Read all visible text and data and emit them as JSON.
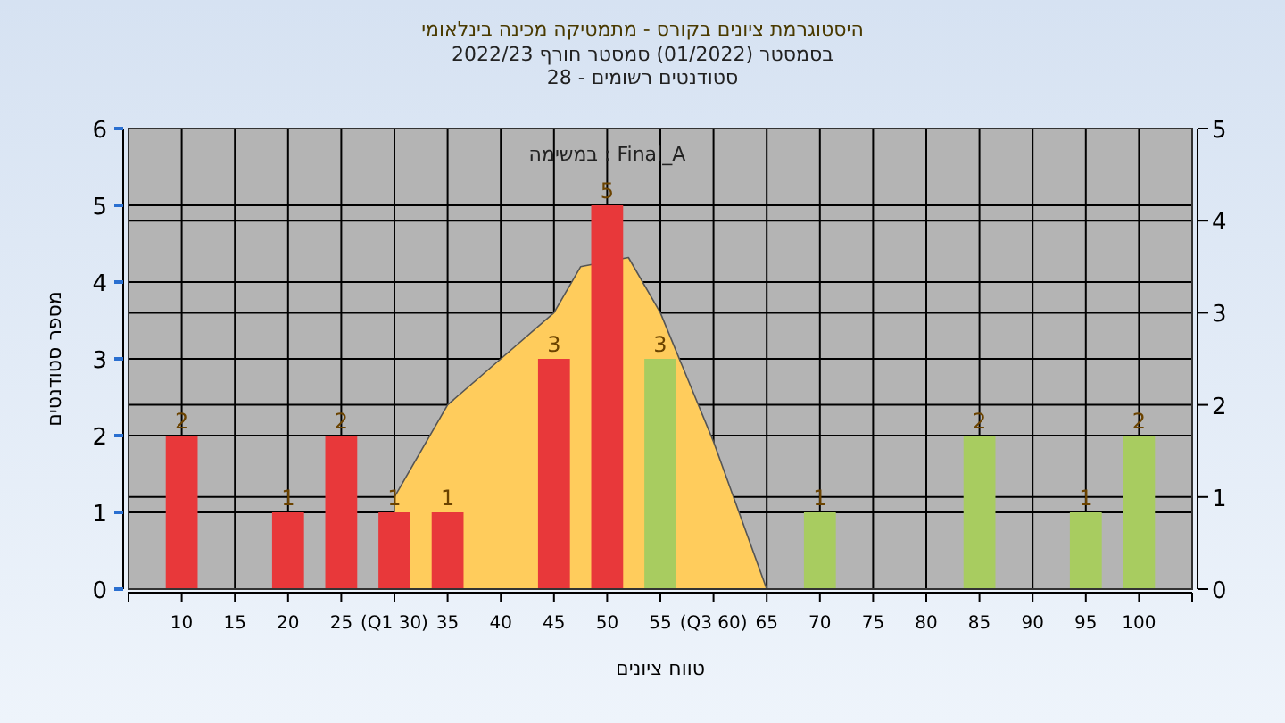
{
  "chart_data": {
    "type": "bar",
    "title": "היסטוגרמת ציונים בקורס - מתמטיקה מכינה בינלאומי",
    "subtitle": "בסמסטר  (01/2022)  סמסטר חורף 2022/23\nסטודנטים רשומים - 28",
    "xlabel": "טווח ציונים",
    "ylabel": "מספר סטודנטים",
    "annotations": [
      "במשימה : Final_A"
    ],
    "series": [
      {
        "type": "area",
        "axis": "y2",
        "color": "#ffcc5c",
        "x": [
          30,
          30,
          35,
          40,
          45,
          47.5,
          52,
          55,
          60,
          65
        ],
        "values": [
          0,
          1,
          2,
          2.5,
          3,
          3.5,
          3.6,
          3,
          1.6,
          0
        ]
      },
      {
        "x": [
          10,
          20,
          25,
          30,
          35,
          45,
          50,
          55,
          70,
          85,
          95,
          100
        ],
        "values": [
          2,
          1,
          2,
          1,
          1,
          3,
          5,
          3,
          1,
          2,
          1,
          2
        ],
        "colors": [
          "#e8383a",
          "#e8383a",
          "#e8383a",
          "#e8383a",
          "#e8383a",
          "#e8383a",
          "#e8383a",
          "#a8cc60",
          "#a8cc60",
          "#a8cc60",
          "#a8cc60",
          "#a8cc60"
        ],
        "value_labels": [
          "2",
          "1",
          "2",
          "1",
          "1",
          "3",
          "5",
          "3",
          "1",
          "2",
          "1",
          "2"
        ]
      }
    ],
    "xlim": [
      5,
      105
    ],
    "xticks": [
      {
        "value": 5,
        "label": null
      },
      10,
      15,
      20,
      25,
      {
        "value": 30,
        "label": "(Q1 30)"
      },
      35,
      40,
      45,
      50,
      55,
      {
        "value": 60,
        "label": "(Q3 60)"
      },
      65,
      70,
      75,
      80,
      85,
      90,
      95,
      100,
      {
        "value": 105,
        "label": null
      }
    ],
    "ylim": [
      0,
      6
    ],
    "yticks": [
      0,
      1,
      2,
      3,
      4,
      5,
      6
    ],
    "y2lim": [
      0,
      5
    ],
    "y2ticks": [
      0,
      1,
      2,
      3,
      4,
      5
    ],
    "grid": true
  }
}
